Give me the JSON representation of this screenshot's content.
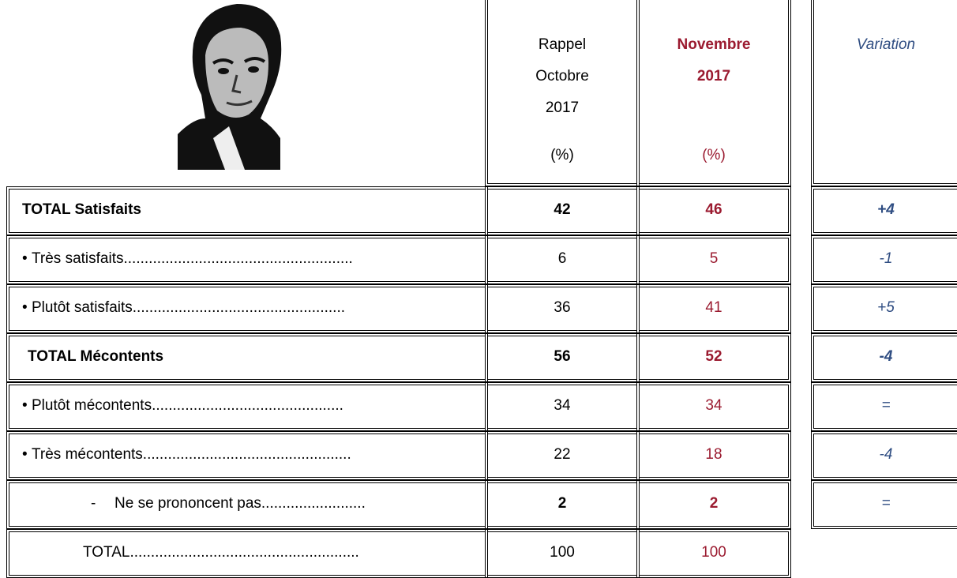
{
  "header": {
    "col1": [
      "Rappel",
      "Octobre",
      "2017",
      "(%)"
    ],
    "col2": [
      "Novembre",
      "2017",
      "(%)"
    ],
    "col3": "Variation"
  },
  "table": {
    "rows": [
      {
        "label": "TOTAL Satisfaits",
        "oct": 42,
        "nov": 46,
        "variation": "+4"
      },
      {
        "marker": "•",
        "label": "Très satisfaits.......................................................",
        "oct": 6,
        "nov": 5,
        "variation": "-1"
      },
      {
        "marker": "•",
        "label": "Plutôt satisfaits...................................................",
        "oct": 36,
        "nov": 41,
        "variation": "+5"
      },
      {
        "label": "TOTAL Mécontents",
        "oct": 56,
        "nov": 52,
        "variation": "-4"
      },
      {
        "marker": "•",
        "label": "Plutôt mécontents..............................................",
        "oct": 34,
        "nov": 34,
        "variation": "="
      },
      {
        "marker": "•",
        "label": "Très mécontents..................................................",
        "oct": 22,
        "nov": 18,
        "variation": "-4"
      },
      {
        "marker": "-",
        "label": "Ne se prononcent pas.........................",
        "oct": 2,
        "nov": 2,
        "variation": "="
      },
      {
        "label": "TOTAL.......................................................",
        "oct": 100,
        "nov": 100
      }
    ]
  }
}
